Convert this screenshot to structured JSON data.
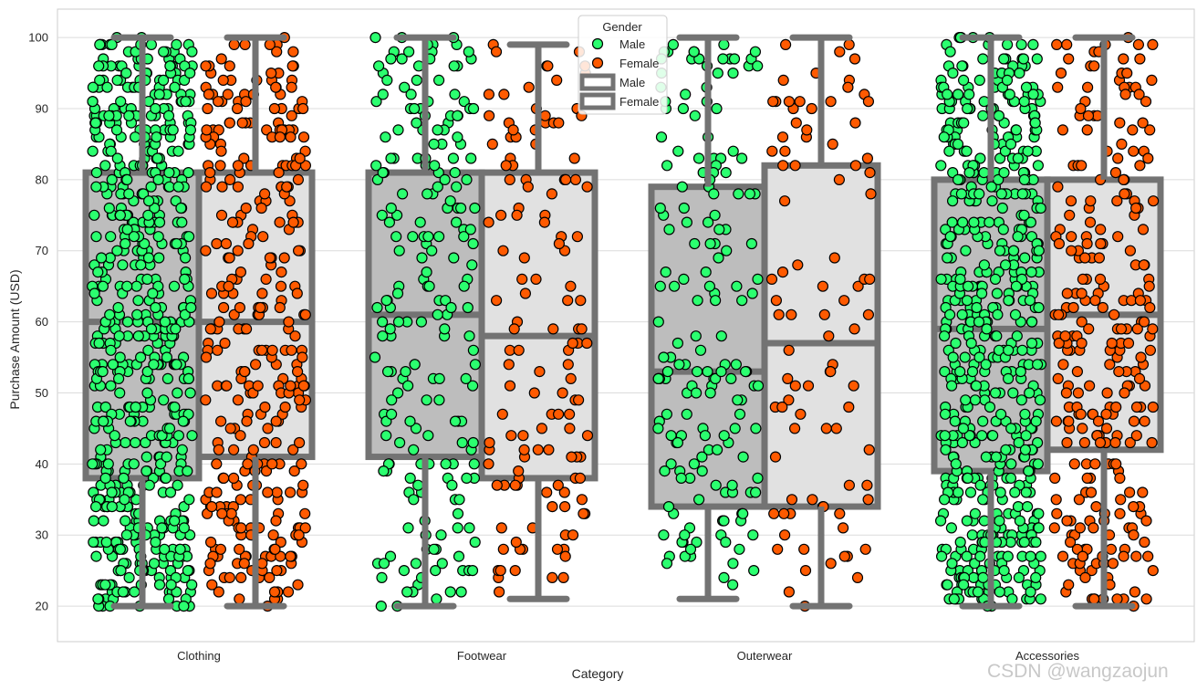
{
  "chart_data": {
    "type": "box",
    "overlay": "strip",
    "xlabel": "Category",
    "ylabel": "Purchase Amount (USD)",
    "categories": [
      "Clothing",
      "Footwear",
      "Outerwear",
      "Accessories"
    ],
    "ylim": [
      15,
      104
    ],
    "yticks": [
      20,
      30,
      40,
      50,
      60,
      70,
      80,
      90,
      100
    ],
    "grid": true,
    "grid_axis": "y",
    "hue": "Gender",
    "legend": {
      "title": "Gender",
      "placement": "top-center",
      "entries": [
        {
          "label": "Male",
          "kind": "point",
          "color": "#2bff6f"
        },
        {
          "label": "Female",
          "kind": "point",
          "color": "#ff5a00"
        },
        {
          "label": "Male",
          "kind": "box",
          "color": "#737373"
        },
        {
          "label": "Female",
          "kind": "box",
          "color": "#737373"
        }
      ]
    },
    "series": [
      {
        "name": "Male",
        "point_color": "#2bff6f",
        "box_fill": "#bdbdbd",
        "box_stats": [
          {
            "whislo": 20,
            "q1": 38,
            "med": 60,
            "q3": 81,
            "whishi": 100
          },
          {
            "whislo": 20,
            "q1": 41,
            "med": 61,
            "q3": 81,
            "whishi": 100
          },
          {
            "whislo": 21,
            "q1": 34,
            "med": 53,
            "q3": 79,
            "whishi": 100
          },
          {
            "whislo": 20,
            "q1": 39,
            "med": 59,
            "q3": 80,
            "whishi": 100
          }
        ],
        "point_counts": [
          600,
          210,
          170,
          560
        ]
      },
      {
        "name": "Female",
        "point_color": "#ff5a00",
        "box_fill": "#e1e1e1",
        "box_stats": [
          {
            "whislo": 20,
            "q1": 41,
            "med": 60,
            "q3": 81,
            "whishi": 100
          },
          {
            "whislo": 21,
            "q1": 38,
            "med": 58,
            "q3": 81,
            "whishi": 99
          },
          {
            "whislo": 20,
            "q1": 34,
            "med": 57,
            "q3": 82,
            "whishi": 100
          },
          {
            "whislo": 20,
            "q1": 42,
            "med": 61,
            "q3": 80,
            "whishi": 100
          }
        ],
        "point_counts": [
          330,
          130,
          90,
          270
        ]
      }
    ],
    "box_line_color": "#737373",
    "grid_color": "#dcdcdc"
  },
  "watermark": "CSDN @wangzaojun"
}
